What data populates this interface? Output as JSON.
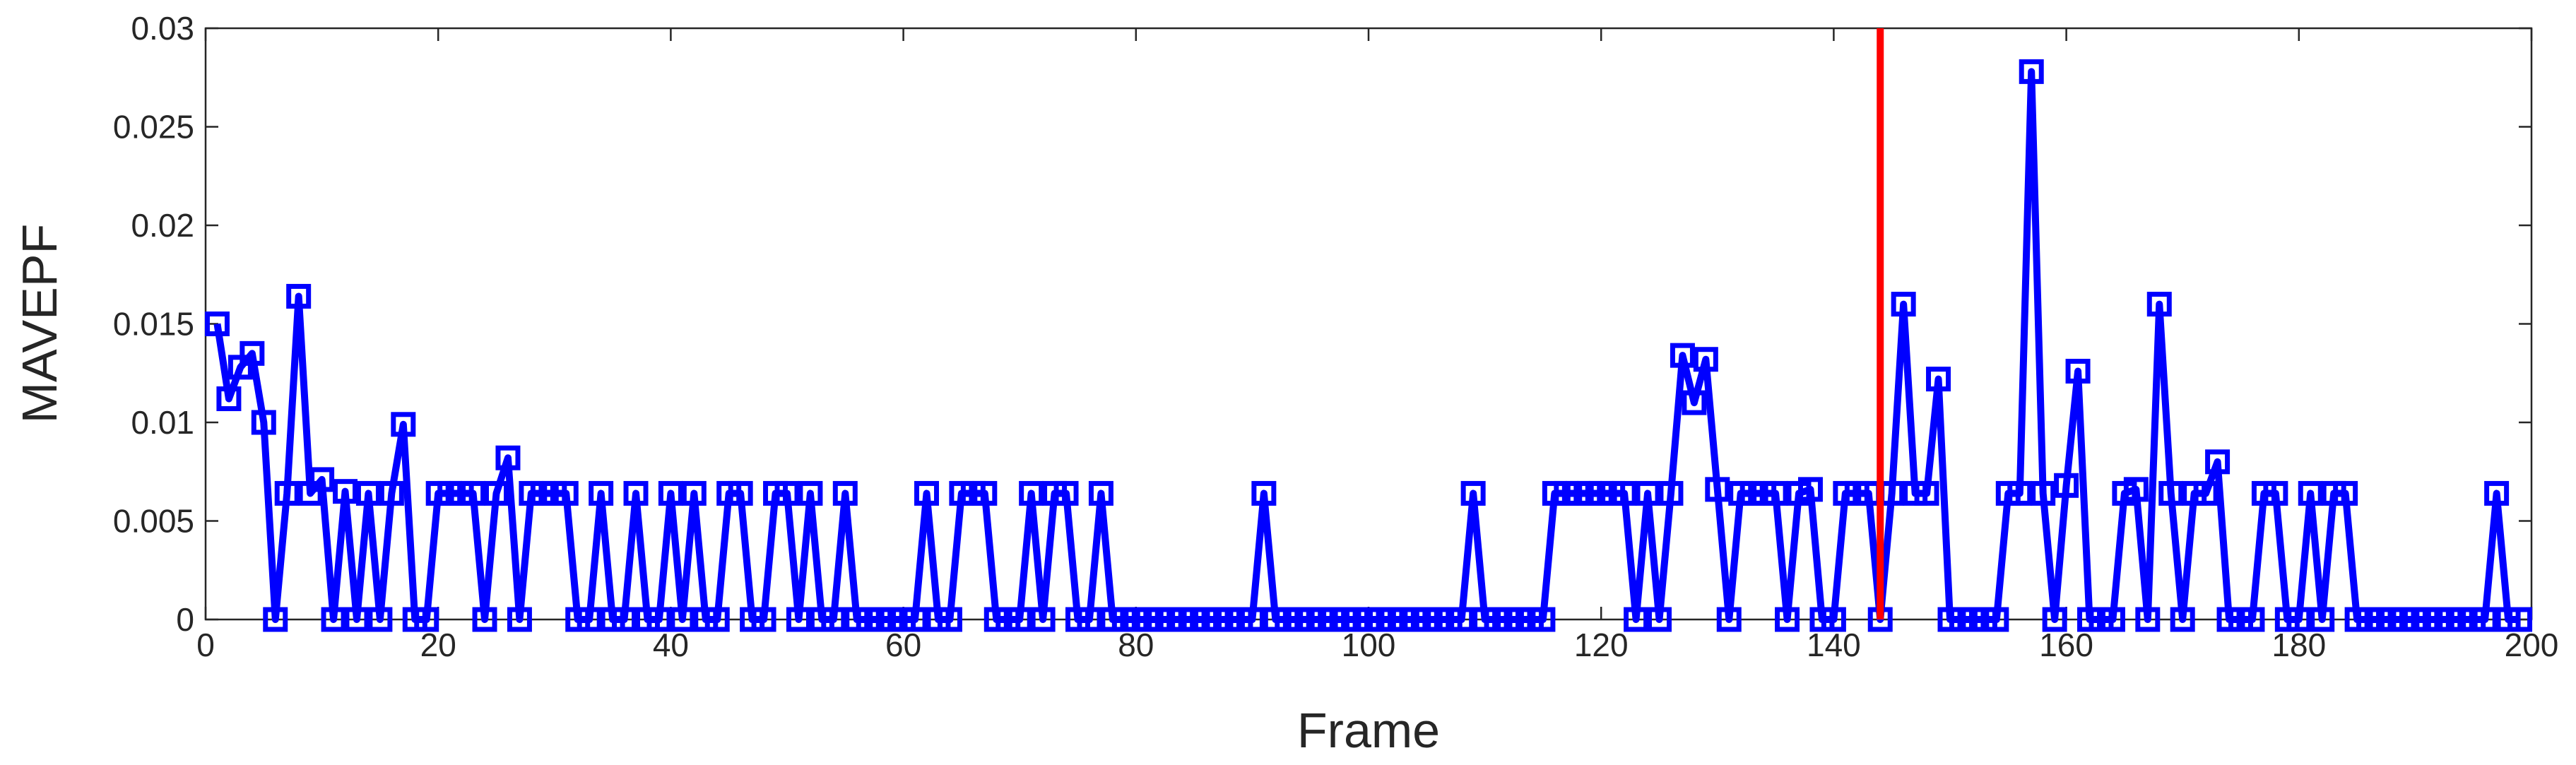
{
  "chart_data": {
    "type": "line",
    "xlabel": "Frame",
    "ylabel": "MAVEPF",
    "x": [
      1,
      2,
      3,
      4,
      5,
      6,
      7,
      8,
      9,
      10,
      11,
      12,
      13,
      14,
      15,
      16,
      17,
      18,
      19,
      20,
      21,
      22,
      23,
      24,
      25,
      26,
      27,
      28,
      29,
      30,
      31,
      32,
      33,
      34,
      35,
      36,
      37,
      38,
      39,
      40,
      41,
      42,
      43,
      44,
      45,
      46,
      47,
      48,
      49,
      50,
      51,
      52,
      53,
      54,
      55,
      56,
      57,
      58,
      59,
      60,
      61,
      62,
      63,
      64,
      65,
      66,
      67,
      68,
      69,
      70,
      71,
      72,
      73,
      74,
      75,
      76,
      77,
      78,
      79,
      80,
      81,
      82,
      83,
      84,
      85,
      86,
      87,
      88,
      89,
      90,
      91,
      92,
      93,
      94,
      95,
      96,
      97,
      98,
      99,
      100,
      101,
      102,
      103,
      104,
      105,
      106,
      107,
      108,
      109,
      110,
      111,
      112,
      113,
      114,
      115,
      116,
      117,
      118,
      119,
      120,
      121,
      122,
      123,
      124,
      125,
      126,
      127,
      128,
      129,
      130,
      131,
      132,
      133,
      134,
      135,
      136,
      137,
      138,
      139,
      140,
      141,
      142,
      143,
      144,
      145,
      146,
      147,
      148,
      149,
      150,
      151,
      152,
      153,
      154,
      155,
      156,
      157,
      158,
      159,
      160,
      161,
      162,
      163,
      164,
      165,
      166,
      167,
      168,
      169,
      170,
      171,
      172,
      173,
      174,
      175,
      176,
      177,
      178,
      179,
      180,
      181,
      182,
      183,
      184,
      185,
      186,
      187,
      188,
      189,
      190,
      191,
      192,
      193,
      194,
      195,
      196,
      197,
      198,
      199
    ],
    "series": [
      {
        "color": "#0000ff",
        "marker": "square",
        "values": [
          0.015,
          0.0112,
          0.0128,
          0.0135,
          0.01,
          0,
          0.0064,
          0.0164,
          0.0064,
          0.0071,
          0,
          0.0065,
          0,
          0.0064,
          0,
          0.0064,
          0.0099,
          0,
          0,
          0.0064,
          0.0064,
          0.0064,
          0.0064,
          0,
          0.0064,
          0.0082,
          0,
          0.0064,
          0.0064,
          0.0064,
          0.0064,
          0,
          0,
          0.0064,
          0,
          0,
          0.0064,
          0,
          0,
          0.0064,
          0,
          0.0064,
          0,
          0,
          0.0064,
          0.0064,
          0,
          0,
          0.0064,
          0.0064,
          0,
          0.0064,
          0,
          0,
          0.0064,
          0,
          0,
          0,
          0,
          0,
          0,
          0.0064,
          0,
          0,
          0.0064,
          0.0064,
          0.0064,
          0,
          0,
          0,
          0.0064,
          0,
          0.0064,
          0.0064,
          0,
          0,
          0.0064,
          0,
          0,
          0,
          0,
          0,
          0,
          0,
          0,
          0,
          0,
          0,
          0,
          0,
          0.0064,
          0,
          0,
          0,
          0,
          0,
          0,
          0,
          0,
          0,
          0,
          0,
          0,
          0,
          0,
          0,
          0,
          0,
          0.0064,
          0,
          0,
          0,
          0,
          0,
          0,
          0.0064,
          0.0064,
          0.0064,
          0.0064,
          0.0064,
          0.0064,
          0.0064,
          0,
          0.0064,
          0,
          0.0064,
          0.0134,
          0.011,
          0.0132,
          0.0066,
          0,
          0.0064,
          0.0064,
          0.0064,
          0.0064,
          0,
          0.0064,
          0.0066,
          0,
          0,
          0.0064,
          0.0064,
          0.0064,
          0,
          0.0064,
          0.016,
          0.0064,
          0.0064,
          0.0122,
          0,
          0,
          0,
          0,
          0,
          0.0064,
          0.0064,
          0.0278,
          0.0064,
          0,
          0.0068,
          0.0126,
          0,
          0,
          0,
          0.0064,
          0.0066,
          0,
          0.016,
          0.0064,
          0,
          0.0064,
          0.0064,
          0.008,
          0,
          0,
          0,
          0.0064,
          0.0064,
          0,
          0,
          0.0064,
          0,
          0.0064,
          0.0064,
          0,
          0,
          0,
          0,
          0,
          0,
          0,
          0,
          0,
          0,
          0,
          0,
          0.0064,
          0,
          0
        ]
      }
    ],
    "vline": {
      "x": 144,
      "color": "#ff0000"
    },
    "xlim": [
      0,
      200
    ],
    "xticks": [
      0,
      20,
      40,
      60,
      80,
      100,
      120,
      140,
      160,
      180,
      200
    ],
    "ylim": [
      0,
      0.03
    ],
    "yticks": [
      0,
      0.005,
      0.01,
      0.015,
      0.02,
      0.025,
      0.03
    ]
  }
}
